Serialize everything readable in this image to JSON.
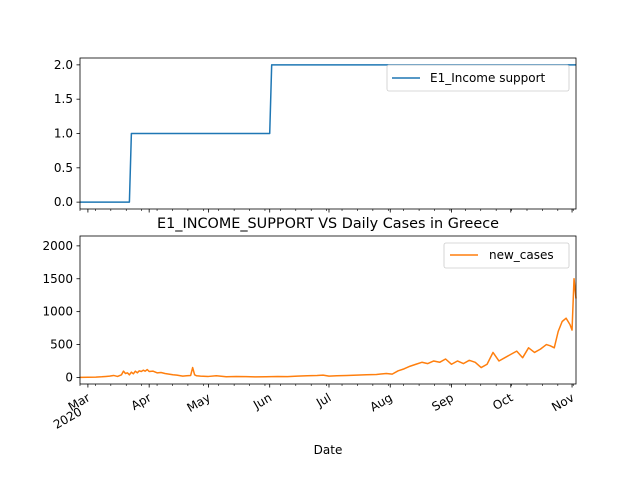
{
  "chart_data": [
    {
      "type": "line",
      "title": "",
      "xlabel": "",
      "ylabel": "",
      "xlim": [
        "2020-02-26",
        "2020-11-03"
      ],
      "ylim": [
        -0.1,
        2.1
      ],
      "y_ticks": [
        0.0,
        0.5,
        1.0,
        1.5,
        2.0
      ],
      "y_tick_labels": [
        "0.0",
        "0.5",
        "1.0",
        "1.5",
        "2.0"
      ],
      "x_tick_labels_visible": false,
      "grid": false,
      "legend_position": "top-right",
      "series": [
        {
          "name": "E1_Income support",
          "color": "#1f77b4",
          "step": true,
          "x": [
            "2020-02-26",
            "2020-03-22",
            "2020-03-23",
            "2020-06-01",
            "2020-06-02",
            "2020-11-03"
          ],
          "y": [
            0,
            0,
            1,
            1,
            2,
            2
          ]
        }
      ]
    },
    {
      "type": "line",
      "title": "E1_INCOME_SUPPORT VS Daily Cases in Greece",
      "xlabel": "Date",
      "ylabel": "",
      "xlim": [
        "2020-02-26",
        "2020-11-03"
      ],
      "ylim": [
        -100,
        2150
      ],
      "y_ticks": [
        0,
        500,
        1000,
        1500,
        2000
      ],
      "y_tick_labels": [
        "0",
        "500",
        "1000",
        "1500",
        "2000"
      ],
      "x_ticks": [
        "2020-03-01",
        "2020-04-01",
        "2020-05-01",
        "2020-06-01",
        "2020-07-01",
        "2020-08-01",
        "2020-09-01",
        "2020-10-01",
        "2020-11-01"
      ],
      "x_tick_labels": [
        "Mar\n2020",
        "Apr",
        "May",
        "Jun",
        "Jul",
        "Aug",
        "Sep",
        "Oct",
        "Nov"
      ],
      "grid": false,
      "legend_position": "top-right",
      "series": [
        {
          "name": "new_cases",
          "color": "#ff7f0e",
          "x": [
            "2020-02-26",
            "2020-03-01",
            "2020-03-05",
            "2020-03-08",
            "2020-03-10",
            "2020-03-12",
            "2020-03-14",
            "2020-03-16",
            "2020-03-18",
            "2020-03-19",
            "2020-03-20",
            "2020-03-21",
            "2020-03-22",
            "2020-03-23",
            "2020-03-24",
            "2020-03-25",
            "2020-03-26",
            "2020-03-27",
            "2020-03-28",
            "2020-03-29",
            "2020-03-30",
            "2020-03-31",
            "2020-04-01",
            "2020-04-03",
            "2020-04-05",
            "2020-04-07",
            "2020-04-09",
            "2020-04-11",
            "2020-04-13",
            "2020-04-15",
            "2020-04-18",
            "2020-04-20",
            "2020-04-22",
            "2020-04-23",
            "2020-04-24",
            "2020-04-25",
            "2020-04-27",
            "2020-05-01",
            "2020-05-05",
            "2020-05-10",
            "2020-05-15",
            "2020-05-20",
            "2020-05-25",
            "2020-05-30",
            "2020-06-05",
            "2020-06-10",
            "2020-06-15",
            "2020-06-20",
            "2020-06-25",
            "2020-06-28",
            "2020-07-01",
            "2020-07-05",
            "2020-07-10",
            "2020-07-15",
            "2020-07-20",
            "2020-07-25",
            "2020-07-30",
            "2020-08-02",
            "2020-08-05",
            "2020-08-08",
            "2020-08-11",
            "2020-08-14",
            "2020-08-17",
            "2020-08-20",
            "2020-08-23",
            "2020-08-26",
            "2020-08-29",
            "2020-09-01",
            "2020-09-04",
            "2020-09-07",
            "2020-09-10",
            "2020-09-13",
            "2020-09-16",
            "2020-09-19",
            "2020-09-22",
            "2020-09-25",
            "2020-09-28",
            "2020-10-01",
            "2020-10-04",
            "2020-10-07",
            "2020-10-10",
            "2020-10-13",
            "2020-10-16",
            "2020-10-19",
            "2020-10-21",
            "2020-10-23",
            "2020-10-25",
            "2020-10-27",
            "2020-10-29",
            "2020-10-31",
            "2020-11-01",
            "2020-11-02",
            "2020-11-03"
          ],
          "y": [
            0,
            2,
            5,
            10,
            15,
            20,
            30,
            15,
            40,
            95,
            60,
            70,
            40,
            80,
            55,
            95,
            70,
            100,
            90,
            110,
            95,
            120,
            90,
            95,
            70,
            75,
            60,
            50,
            40,
            35,
            20,
            25,
            30,
            150,
            40,
            25,
            20,
            15,
            25,
            10,
            15,
            12,
            8,
            10,
            15,
            12,
            20,
            25,
            30,
            35,
            20,
            25,
            30,
            35,
            40,
            45,
            60,
            50,
            100,
            130,
            170,
            200,
            230,
            210,
            250,
            230,
            280,
            200,
            250,
            210,
            260,
            230,
            150,
            200,
            380,
            250,
            300,
            350,
            400,
            300,
            450,
            380,
            430,
            500,
            480,
            450,
            700,
            850,
            900,
            800,
            720,
            1500,
            1200
          ]
        }
      ]
    }
  ]
}
